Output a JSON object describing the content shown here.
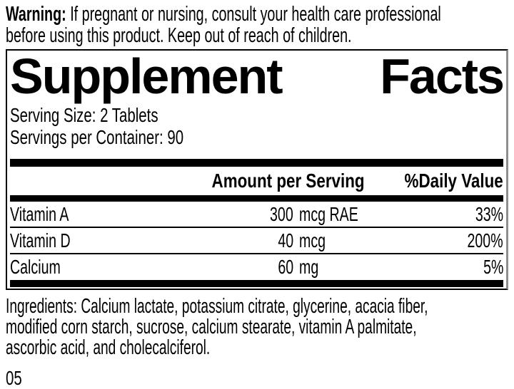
{
  "warning": {
    "bold_prefix": "Warning:",
    "line1_rest": " If pregnant or nursing, consult your health care professional",
    "line2": "before using this product. Keep out of reach of children."
  },
  "panel": {
    "title_word1": "Supplement",
    "title_word2": "Facts",
    "serving_size": "Serving Size: 2 Tablets",
    "servings_per_container": "Servings per Container: 90",
    "columns": {
      "amount": "Amount per Serving",
      "daily_value": "%Daily Value"
    },
    "rows": [
      {
        "name": "Vitamin A",
        "amount_value": "300",
        "amount_unit": "mcg RAE",
        "daily_value": "33%"
      },
      {
        "name": "Vitamin D",
        "amount_value": "40",
        "amount_unit": "mcg",
        "daily_value": "200%"
      },
      {
        "name": "Calcium",
        "amount_value": "60",
        "amount_unit": "mg",
        "daily_value": "5%"
      }
    ]
  },
  "ingredients": {
    "lines": [
      "Ingredients: Calcium lactate, potassium citrate, glycerine, acacia fiber,",
      "modified corn starch, sucrose, calcium stearate, vitamin A palmitate,",
      "ascorbic acid, and cholecalciferol."
    ]
  },
  "footer_code": "05",
  "colors": {
    "text": "#000000",
    "background": "#ffffff",
    "rule": "#000000",
    "panel_right_edge": "#8e8e8e"
  }
}
